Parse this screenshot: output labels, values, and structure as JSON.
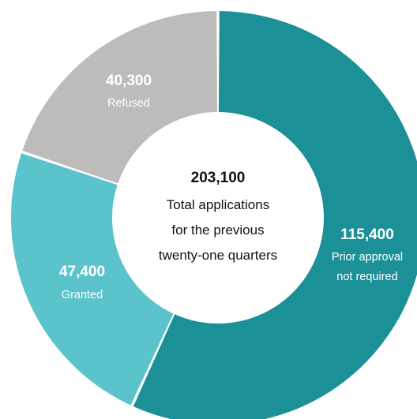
{
  "chart_data": {
    "type": "pie",
    "title": "",
    "center": {
      "total": "203,100",
      "caption_lines": [
        "Total applications",
        "for the previous",
        "twenty-one quarters"
      ]
    },
    "slices": [
      {
        "key": "prior",
        "label_lines": [
          "Prior approval",
          "not required"
        ],
        "value": 115400,
        "value_label": "115,400",
        "color": "#1c9097"
      },
      {
        "key": "granted",
        "label_lines": [
          "Granted"
        ],
        "value": 47400,
        "value_label": "47,400",
        "color": "#5bc3cb"
      },
      {
        "key": "refused",
        "label_lines": [
          "Refused"
        ],
        "value": 40300,
        "value_label": "40,300",
        "color": "#bdbcbb"
      }
    ]
  }
}
